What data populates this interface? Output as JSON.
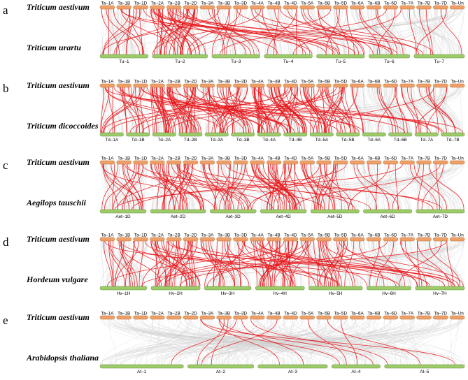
{
  "panels": [
    {
      "letter": "a",
      "top_species": "Triticum aestivum",
      "bottom_species": "Triticum urartu",
      "top_chromosomes": [
        "Ta–1A",
        "Ta–1B",
        "Ta–1D",
        "Ta–2A",
        "Ta–2B",
        "Ta–2D",
        "Ta–3A",
        "Ta–3B",
        "Ta–3D",
        "Ta–4A",
        "Ta–4B",
        "Ta–4D",
        "Ta–5A",
        "Ta–5B",
        "Ta–5D",
        "Ta–6A",
        "Ta–6B",
        "Ta–6D",
        "Ta–7A",
        "Ta–7B",
        "Ta–7D",
        "Ta–Un"
      ],
      "bottom_chromosomes": [
        "Tu–1",
        "Tu–2",
        "Tu–3",
        "Tu–4",
        "Tu–5",
        "Tu–6",
        "Tu–7"
      ],
      "link_color": "#e8161b"
    },
    {
      "letter": "b",
      "top_species": "Triticum aestivum",
      "bottom_species": "Triticum dicoccoides",
      "top_chromosomes": [
        "Ta–1A",
        "Ta–1B",
        "Ta–1D",
        "Ta–2A",
        "Ta–2B",
        "Ta–2D",
        "Ta–3A",
        "Ta–3B",
        "Ta–3D",
        "Ta–4A",
        "Ta–4B",
        "Ta–4D",
        "Ta–5A",
        "Ta–5B",
        "Ta–5D",
        "Ta–6A",
        "Ta–6B",
        "Ta–6D",
        "Ta–7A",
        "Ta–7B",
        "Ta–7D",
        "Ta–Un"
      ],
      "bottom_chromosomes": [
        "Td–1A",
        "Td–1B",
        "Td–2A",
        "Td–2B",
        "Td–3A",
        "Td–3B",
        "Td–4A",
        "Td–4B",
        "Td–5A",
        "Td–5B",
        "Td–6A",
        "Td–6B",
        "Td–7A",
        "Td–7B"
      ],
      "link_color": "#e8161b"
    },
    {
      "letter": "c",
      "top_species": "Triticum aestivum",
      "bottom_species": "Aegilops tauschii",
      "top_chromosomes": [
        "Ta–1A",
        "Ta–1B",
        "Ta–1D",
        "Ta–2A",
        "Ta–2B",
        "Ta–2D",
        "Ta–3A",
        "Ta–3B",
        "Ta–3D",
        "Ta–4A",
        "Ta–4B",
        "Ta–4D",
        "Ta–5A",
        "Ta–5B",
        "Ta–5D",
        "Ta–6A",
        "Ta–6B",
        "Ta–6D",
        "Ta–7A",
        "Ta–7B",
        "Ta–7D",
        "Ta–Un"
      ],
      "bottom_chromosomes": [
        "Aet–1D",
        "Aet–2D",
        "Aet–3D",
        "Aet–4D",
        "Aet–5D",
        "Aet–6D",
        "Aet–7D"
      ],
      "link_color": "#e8161b"
    },
    {
      "letter": "d",
      "top_species": "Triticum aestivum",
      "bottom_species": "Hordeum vulgare",
      "top_chromosomes": [
        "Ta–1A",
        "Ta–1B",
        "Ta–1D",
        "Ta–2A",
        "Ta–2B",
        "Ta–2D",
        "Ta–3A",
        "Ta–3B",
        "Ta–3D",
        "Ta–4A",
        "Ta–4B",
        "Ta–4D",
        "Ta–5A",
        "Ta–5B",
        "Ta–5D",
        "Ta–6A",
        "Ta–6B",
        "Ta–6D",
        "Ta–7A",
        "Ta–7B",
        "Ta–7D",
        "Ta–Un"
      ],
      "bottom_chromosomes": [
        "Hv–1H",
        "Hv–2H",
        "Hv–3H",
        "Hv–4H",
        "Hv–5H",
        "Hv–6H",
        "Hv–7H"
      ],
      "link_color": "#e8161b"
    },
    {
      "letter": "e",
      "top_species": "Triticum aestivum",
      "bottom_species": "Arabidopsis thaliana",
      "top_chromosomes": [
        "Ta–1A",
        "Ta–1B",
        "Ta–1D",
        "Ta–2A",
        "Ta–2B",
        "Ta–2D",
        "Ta–3A",
        "Ta–3B",
        "Ta–3D",
        "Ta–4A",
        "Ta–4B",
        "Ta–4D",
        "Ta–5A",
        "Ta–5B",
        "Ta–5D",
        "Ta–6A",
        "Ta–6B",
        "Ta–6D",
        "Ta–7A",
        "Ta–7B",
        "Ta–7D",
        "Ta–Un"
      ],
      "bottom_chromosomes": [
        "At–1",
        "At–2",
        "At–3",
        "At–4",
        "At–5"
      ],
      "link_color": "#e8161b"
    }
  ],
  "colors": {
    "top_bar": "#f0a066",
    "bottom_bar": "#9ecb6a",
    "background_links": "#c9c9c9",
    "collinear_links": "#e8161b"
  }
}
